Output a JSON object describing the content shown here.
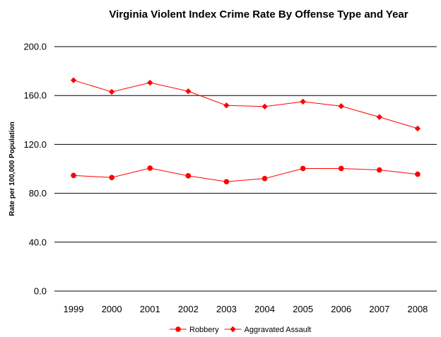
{
  "chart_data": {
    "type": "line",
    "title": "Virginia Violent Index Crime Rate By Offense Type and Year",
    "xlabel": "",
    "ylabel": "Rate per 100,000 Population",
    "ylim": [
      0,
      200
    ],
    "yticks": [
      "0.0",
      "40.0",
      "80.0",
      "120.0",
      "160.0",
      "200.0"
    ],
    "categories": [
      "1999",
      "2000",
      "2001",
      "2002",
      "2003",
      "2004",
      "2005",
      "2006",
      "2007",
      "2008"
    ],
    "grid": true,
    "legend_position": "bottom",
    "series": [
      {
        "name": "Robbery",
        "marker": "circle",
        "color": "#ff0000",
        "values": [
          94.6,
          92.9,
          100.6,
          94.3,
          89.5,
          92.1,
          100.3,
          100.3,
          99.1,
          95.6
        ]
      },
      {
        "name": "Aggravated Assault",
        "marker": "diamond",
        "color": "#ff0000",
        "values": [
          172.5,
          163.0,
          170.5,
          163.5,
          151.9,
          151.0,
          155.0,
          151.3,
          142.4,
          133.0
        ]
      }
    ]
  }
}
